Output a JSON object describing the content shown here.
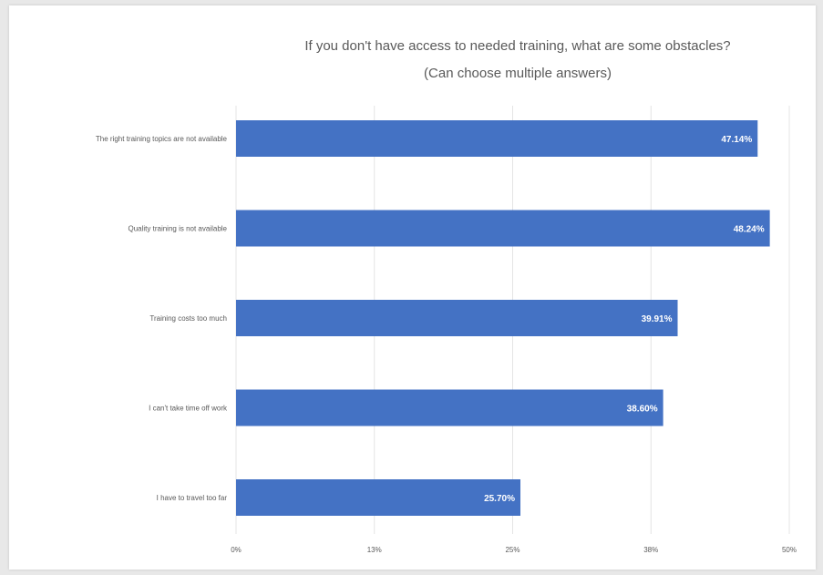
{
  "chart_data": {
    "type": "bar",
    "orientation": "horizontal",
    "title_lines": [
      "If you don't have access to needed training, what are some obstacles?",
      "(Can choose multiple answers)"
    ],
    "categories": [
      "The right training topics are not available",
      "Quality training is not available",
      "Training costs too much",
      "I can't take time off work",
      "I have to travel too far"
    ],
    "values": [
      47.14,
      48.24,
      39.91,
      38.6,
      25.7
    ],
    "data_labels": [
      "47.14%",
      "48.24%",
      "39.91%",
      "38.60%",
      "25.70%"
    ],
    "x_ticks": [
      0,
      12.5,
      25,
      37.5,
      50
    ],
    "x_tick_labels": [
      "0%",
      "13%",
      "25%",
      "38%",
      "50%"
    ],
    "xlim": [
      0,
      50
    ],
    "grid": true,
    "legend": "none",
    "bar_color": "#4472c4"
  }
}
